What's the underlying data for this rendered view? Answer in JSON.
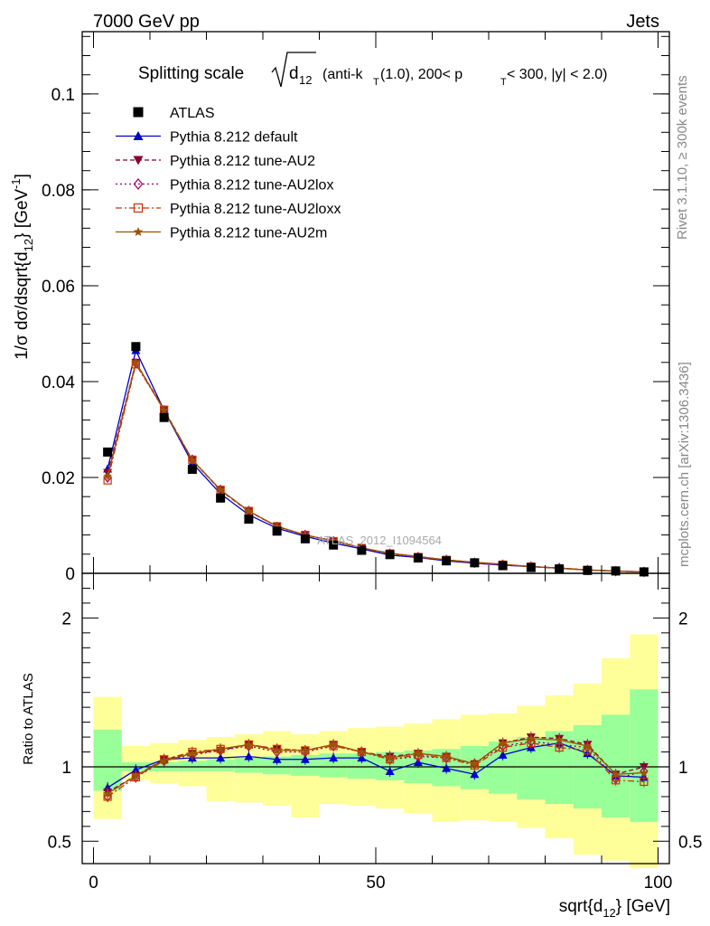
{
  "header": {
    "left": "7000 GeV pp",
    "right": "Jets"
  },
  "side_labels": {
    "rivet": "Rivet 3.1.10, ≥ 300k events",
    "mcplots": "mcplots.cern.ch [arXiv:1306.3436]"
  },
  "watermark": "ATLAS_2012_I1094564",
  "chart_data": [
    {
      "type": "line",
      "title": "Splitting scale √d₁₂ (anti-k_T(1.0), 200< p_T < 300, |y| < 2.0)",
      "title_parts": {
        "main": "Splitting scale",
        "var": "d",
        "var_sub": "12",
        "paren1": "(anti-k",
        "kt_sub": "T",
        "paren2": "(1.0), 200< p",
        "pt_sub": "T",
        "paren3": " < 300, |y| < 2.0)"
      },
      "ylabel": "1/σ dσ/dsqrt{d12} [GeV⁻¹]",
      "ylabel_parts": {
        "a": "1/σ dσ/dsqrt{d",
        "sub": "12",
        "b": "} [GeV",
        "sup": "-1",
        "c": "]"
      },
      "xlim": [
        -2,
        102
      ],
      "ylim": [
        0,
        0.113
      ],
      "y_ticks": [
        0,
        0.02,
        0.04,
        0.06,
        0.08,
        0.1
      ],
      "y_tick_labels": [
        "0",
        "0.02",
        "0.04",
        "0.06",
        "0.08",
        "0.1"
      ],
      "x": [
        2.5,
        7.5,
        12.5,
        17.5,
        22.5,
        27.5,
        32.5,
        37.5,
        42.5,
        47.5,
        52.5,
        57.5,
        62.5,
        67.5,
        72.5,
        77.5,
        82.5,
        87.5,
        92.5,
        97.5
      ],
      "series": [
        {
          "name": "ATLAS",
          "color": "#000000",
          "marker": "square",
          "style": "data",
          "values": [
            0.0253,
            0.0473,
            0.0325,
            0.0217,
            0.0157,
            0.0113,
            0.0088,
            0.0072,
            0.0059,
            0.0048,
            0.0039,
            0.0032,
            0.0026,
            0.0022,
            0.0016,
            0.0012,
            0.0009,
            0.0006,
            0.0005,
            0.0003
          ]
        },
        {
          "name": "Pythia 8.212 default",
          "color": "#0000cc",
          "marker": "triangle-up",
          "dash": "",
          "values": [
            0.0218,
            0.0465,
            0.034,
            0.023,
            0.0166,
            0.0122,
            0.0094,
            0.0077,
            0.0063,
            0.0051,
            0.0038,
            0.0033,
            0.0026,
            0.0021,
            0.0017,
            0.0014,
            0.0011,
            0.0007,
            0.0005,
            0.0003
          ]
        },
        {
          "name": "Pythia 8.212 tune-AU2",
          "color": "#880033",
          "marker": "triangle-down",
          "dash": "5,3",
          "values": [
            0.021,
            0.044,
            0.0342,
            0.0236,
            0.0173,
            0.0129,
            0.0098,
            0.008,
            0.0068,
            0.0053,
            0.0042,
            0.0035,
            0.0028,
            0.0023,
            0.0018,
            0.0014,
            0.0011,
            0.0007,
            0.00048,
            0.0003
          ]
        },
        {
          "name": "Pythia 8.212 tune-AU2lox",
          "color": "#990066",
          "marker": "diamond-open",
          "dash": "2,3",
          "values": [
            0.02,
            0.0438,
            0.034,
            0.0237,
            0.0174,
            0.013,
            0.0097,
            0.008,
            0.0067,
            0.0053,
            0.0041,
            0.0034,
            0.0028,
            0.0022,
            0.0018,
            0.0014,
            0.0011,
            0.0007,
            0.00046,
            0.00029
          ]
        },
        {
          "name": "Pythia 8.212 tune-AU2loxx",
          "color": "#cc3300",
          "marker": "square-open",
          "dash": "7,3,2,3",
          "values": [
            0.0194,
            0.0436,
            0.0341,
            0.0237,
            0.0174,
            0.013,
            0.0098,
            0.008,
            0.0067,
            0.0053,
            0.0041,
            0.0034,
            0.0028,
            0.0022,
            0.0018,
            0.0014,
            0.001,
            0.0007,
            0.00045,
            0.00027
          ]
        },
        {
          "name": "Pythia 8.212 tune-AU2m",
          "color": "#995500",
          "marker": "star",
          "dash": "",
          "values": [
            0.0203,
            0.044,
            0.034,
            0.0236,
            0.0174,
            0.013,
            0.0098,
            0.008,
            0.0068,
            0.0053,
            0.0042,
            0.0035,
            0.0028,
            0.0023,
            0.0019,
            0.0014,
            0.0011,
            0.0007,
            0.00047,
            0.00028
          ]
        }
      ]
    },
    {
      "type": "line",
      "ylabel": "Ratio to ATLAS",
      "xlabel": "sqrt{d12} [GeV]",
      "xlabel_parts": {
        "a": "sqrt{d",
        "sub": "12",
        "b": "} [GeV]"
      },
      "xlim": [
        -2,
        102
      ],
      "ylim": [
        0.35,
        2.3
      ],
      "x_ticks": [
        0,
        50,
        100
      ],
      "x_tick_labels": [
        "0",
        "50",
        "100"
      ],
      "y_ticks": [
        0.5,
        1,
        2
      ],
      "y_tick_labels": [
        "0.5",
        "1",
        "2"
      ],
      "x_edges": [
        0,
        5,
        10,
        15,
        20,
        25,
        30,
        35,
        40,
        45,
        50,
        55,
        60,
        65,
        70,
        75,
        80,
        85,
        90,
        95,
        100
      ],
      "band_inner_lo": [
        0.84,
        0.97,
        0.97,
        0.97,
        0.97,
        0.96,
        0.95,
        0.94,
        0.93,
        0.92,
        0.91,
        0.89,
        0.87,
        0.85,
        0.82,
        0.78,
        0.75,
        0.72,
        0.66,
        0.63
      ],
      "band_inner_hi": [
        1.25,
        1.03,
        1.03,
        1.04,
        1.05,
        1.06,
        1.07,
        1.08,
        1.09,
        1.09,
        1.1,
        1.11,
        1.12,
        1.14,
        1.17,
        1.2,
        1.24,
        1.28,
        1.35,
        1.52
      ],
      "band_outer_lo": [
        0.65,
        0.91,
        0.89,
        0.87,
        0.77,
        0.76,
        0.74,
        0.66,
        0.75,
        0.74,
        0.72,
        0.69,
        0.63,
        0.64,
        0.63,
        0.59,
        0.52,
        0.41,
        0.37,
        0.32
      ],
      "band_outer_hi": [
        1.47,
        1.14,
        1.16,
        1.18,
        1.2,
        1.22,
        1.24,
        1.22,
        1.24,
        1.26,
        1.27,
        1.29,
        1.32,
        1.35,
        1.36,
        1.41,
        1.48,
        1.56,
        1.73,
        1.89
      ],
      "x": [
        2.5,
        7.5,
        12.5,
        17.5,
        22.5,
        27.5,
        32.5,
        37.5,
        42.5,
        47.5,
        52.5,
        57.5,
        62.5,
        67.5,
        72.5,
        77.5,
        82.5,
        87.5,
        92.5,
        97.5
      ],
      "series": [
        {
          "name": "Pythia 8.212 default",
          "color": "#0000cc",
          "marker": "triangle-up",
          "dash": "",
          "values": [
            0.86,
            0.98,
            1.05,
            1.06,
            1.06,
            1.07,
            1.05,
            1.05,
            1.06,
            1.06,
            0.97,
            1.03,
            0.99,
            0.95,
            1.08,
            1.13,
            1.16,
            1.09,
            0.94,
            0.93
          ]
        },
        {
          "name": "Pythia 8.212 tune-AU2",
          "color": "#880033",
          "marker": "triangle-down",
          "dash": "5,3",
          "values": [
            0.83,
            0.94,
            1.05,
            1.09,
            1.11,
            1.15,
            1.12,
            1.11,
            1.15,
            1.1,
            1.07,
            1.09,
            1.07,
            1.02,
            1.16,
            1.2,
            1.19,
            1.15,
            0.95,
            1.0
          ]
        },
        {
          "name": "Pythia 8.212 tune-AU2lox",
          "color": "#990066",
          "marker": "diamond-open",
          "dash": "2,3",
          "values": [
            0.8,
            0.93,
            1.04,
            1.08,
            1.11,
            1.14,
            1.1,
            1.1,
            1.14,
            1.1,
            1.05,
            1.07,
            1.06,
            1.02,
            1.14,
            1.17,
            1.15,
            1.13,
            0.92,
            0.97
          ]
        },
        {
          "name": "Pythia 8.212 tune-AU2loxx",
          "color": "#cc3300",
          "marker": "square-open",
          "dash": "7,3,2,3",
          "values": [
            0.8,
            0.93,
            1.05,
            1.1,
            1.12,
            1.15,
            1.12,
            1.11,
            1.14,
            1.1,
            1.05,
            1.08,
            1.06,
            1.01,
            1.13,
            1.16,
            1.13,
            1.11,
            0.91,
            0.9
          ]
        },
        {
          "name": "Pythia 8.212 tune-AU2m",
          "color": "#995500",
          "marker": "star",
          "dash": "",
          "values": [
            0.82,
            0.94,
            1.04,
            1.09,
            1.12,
            1.15,
            1.11,
            1.11,
            1.15,
            1.1,
            1.06,
            1.09,
            1.07,
            1.02,
            1.16,
            1.19,
            1.18,
            1.14,
            0.95,
            0.96
          ]
        }
      ]
    }
  ],
  "colors": {
    "band_inner": "#99ff99",
    "band_outer": "#ffff99",
    "side_text": "#888888",
    "watermark": "#aaaaaa"
  }
}
